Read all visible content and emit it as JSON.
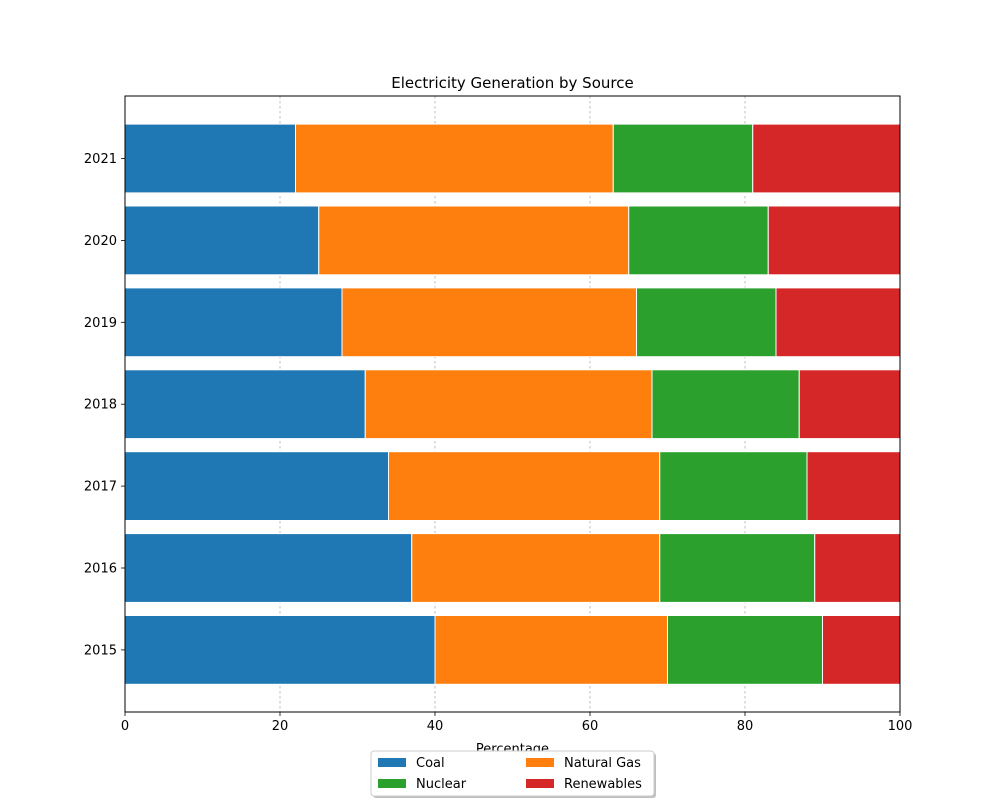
{
  "chart_data": {
    "type": "bar",
    "orientation": "horizontal",
    "stacked": true,
    "title": "Electricity Generation by Source",
    "xlabel": "Percentage",
    "ylabel": "",
    "xlim": [
      0,
      100
    ],
    "xticks": [
      0,
      20,
      40,
      60,
      80,
      100
    ],
    "grid": "x-dashed",
    "legend_position": "bottom-center",
    "categories": [
      "2015",
      "2016",
      "2017",
      "2018",
      "2019",
      "2020",
      "2021"
    ],
    "series": [
      {
        "name": "Coal",
        "color": "#1f77b4",
        "values": [
          40,
          37,
          34,
          31,
          28,
          25,
          22
        ]
      },
      {
        "name": "Natural Gas",
        "color": "#ff7f0e",
        "values": [
          30,
          32,
          35,
          37,
          38,
          40,
          41
        ]
      },
      {
        "name": "Nuclear",
        "color": "#2ca02c",
        "values": [
          20,
          20,
          19,
          19,
          18,
          18,
          18
        ]
      },
      {
        "name": "Renewables",
        "color": "#d62728",
        "values": [
          10,
          11,
          12,
          13,
          16,
          17,
          19
        ]
      }
    ]
  }
}
